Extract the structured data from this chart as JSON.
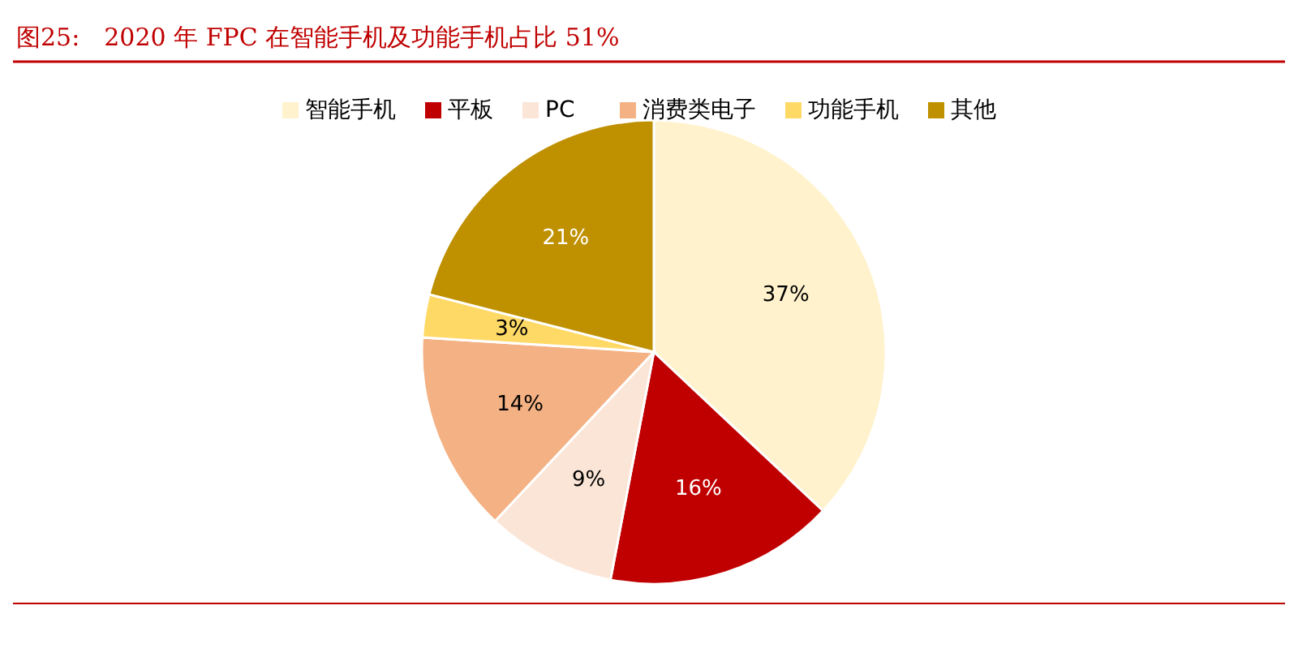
{
  "chart_data": {
    "type": "pie",
    "title": "图25:　2020 年 FPC 在智能手机及功能手机占比 51%",
    "categories": [
      "智能手机",
      "平板",
      "PC",
      "消费类电子",
      "功能手机",
      "其他"
    ],
    "values": [
      37,
      16,
      9,
      14,
      3,
      21
    ],
    "value_labels": [
      "37%",
      "16%",
      "9%",
      "14%",
      "3%",
      "21%"
    ],
    "colors": [
      "#fff2cc",
      "#c00000",
      "#fbe5d6",
      "#f4b183",
      "#ffd966",
      "#bf9000"
    ],
    "legend": "top"
  }
}
